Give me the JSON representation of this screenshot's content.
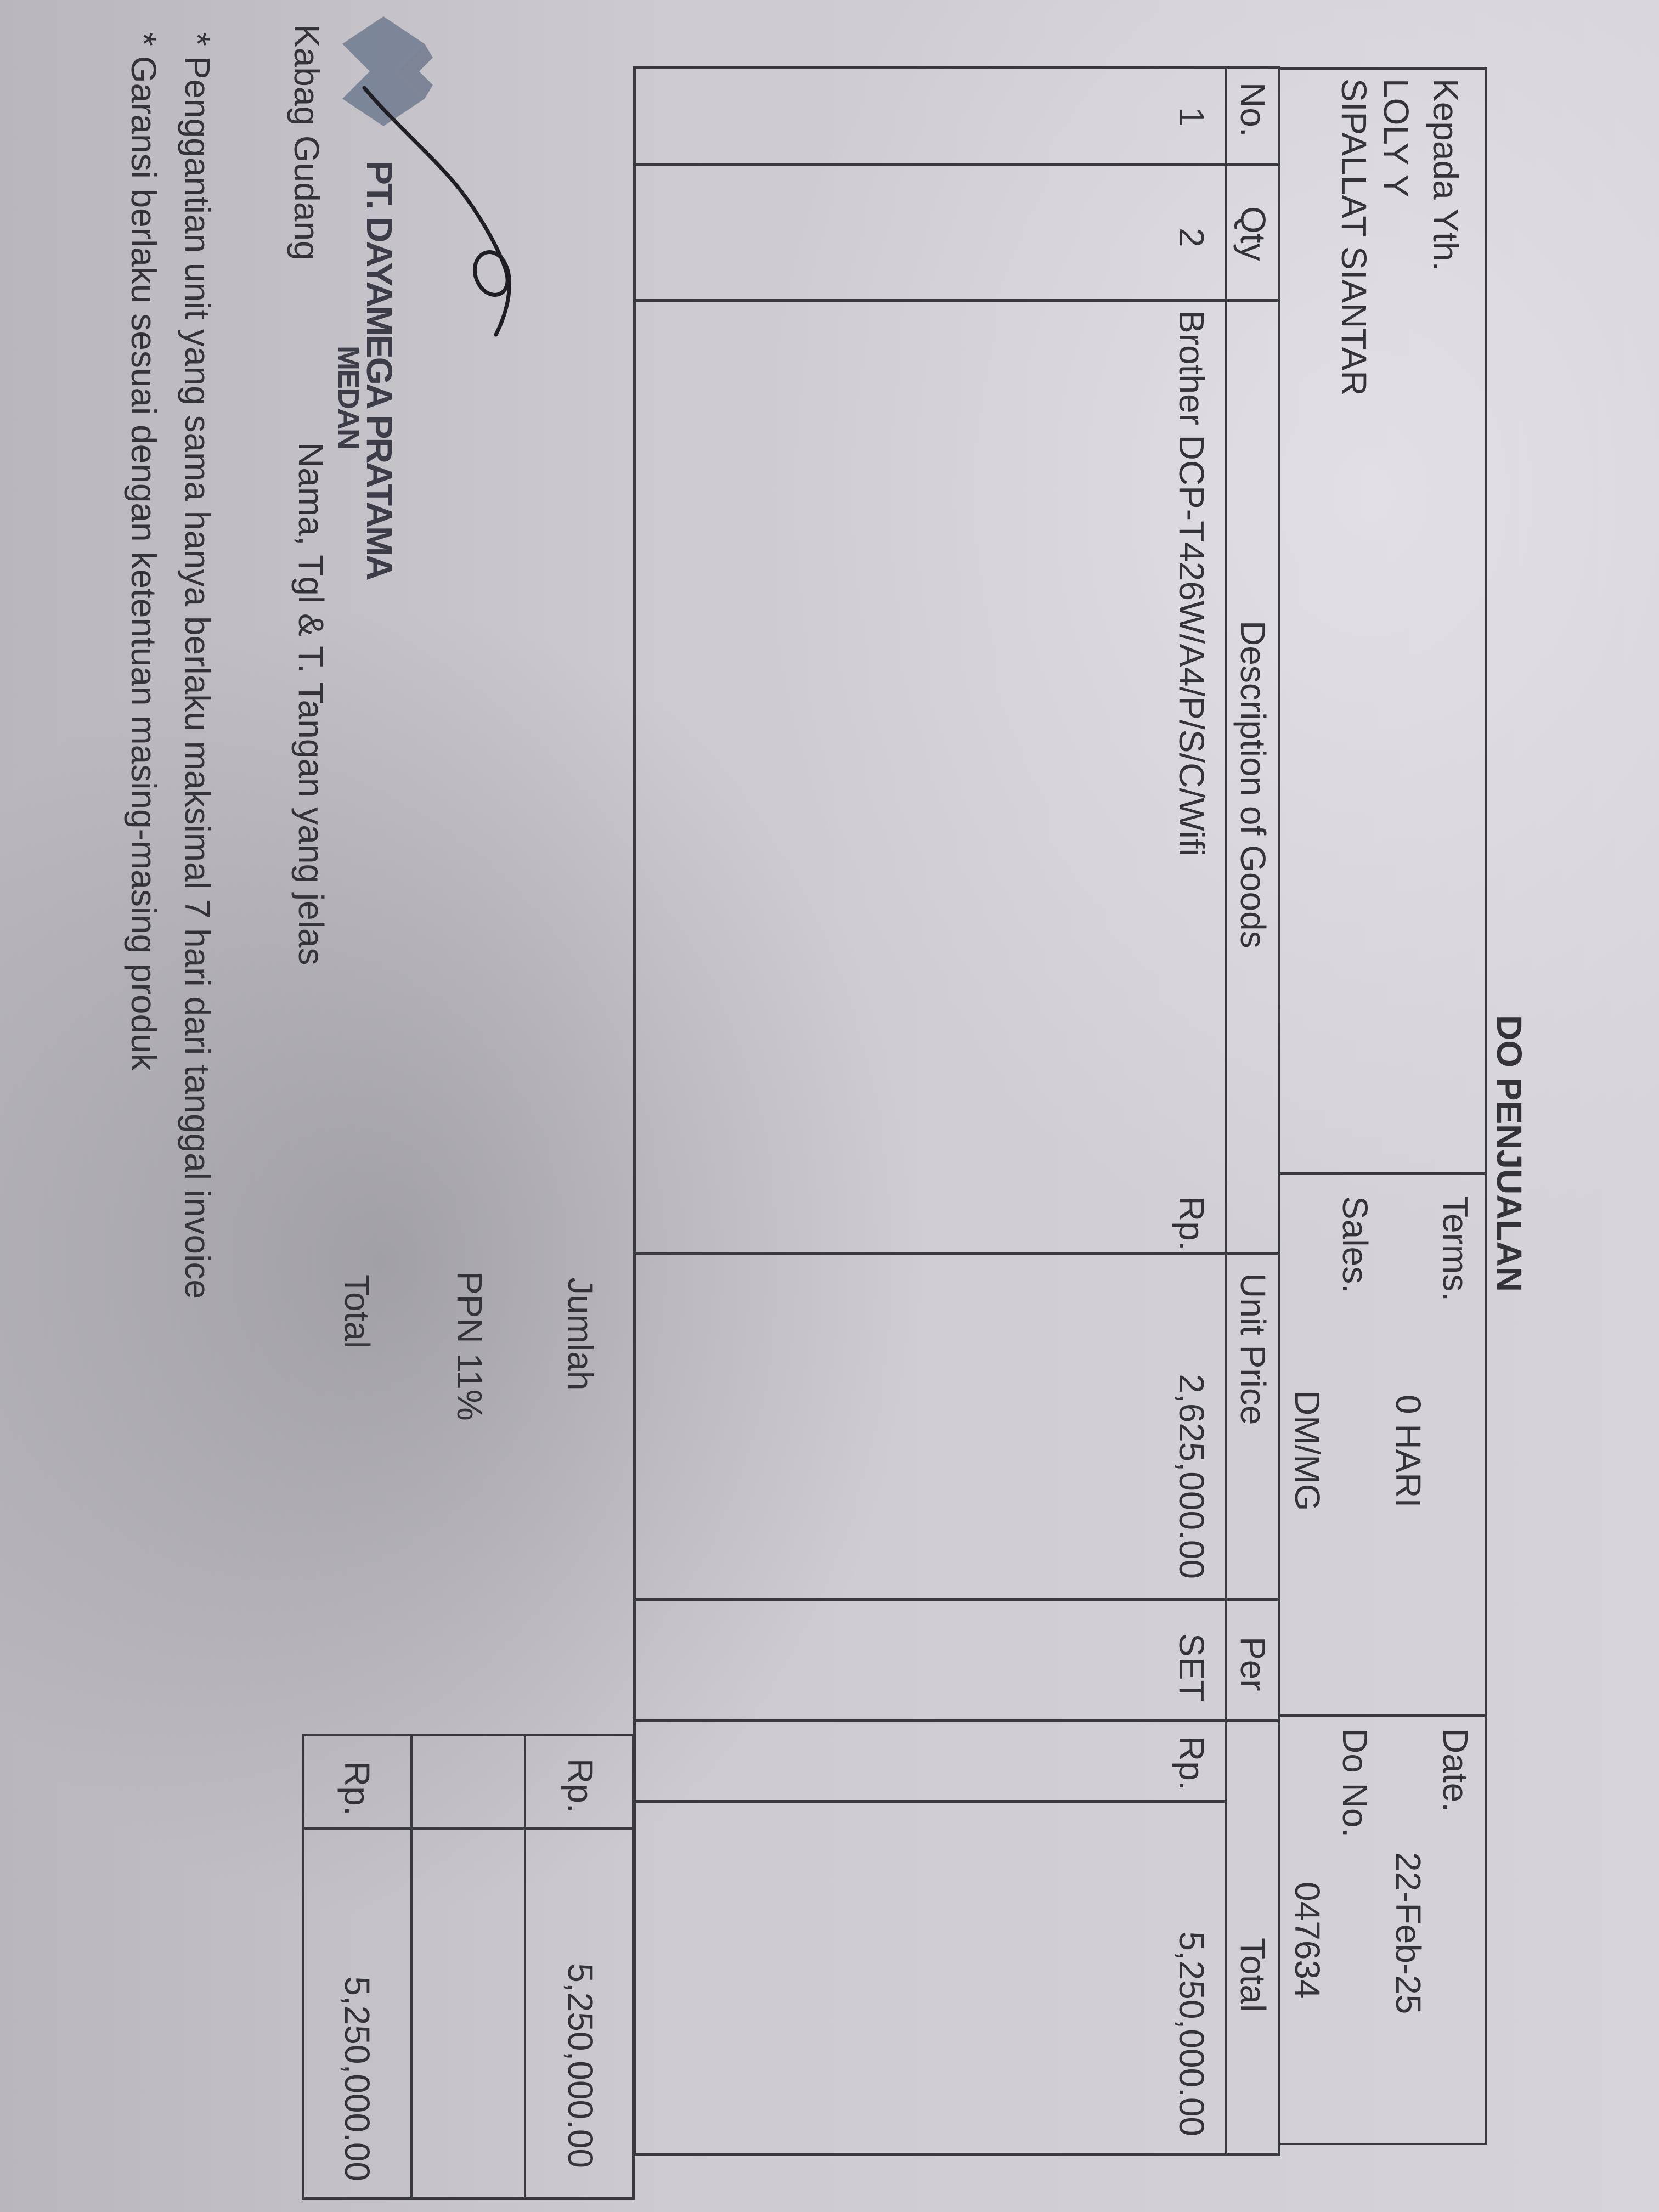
{
  "title": "DO PENJUALAN",
  "header": {
    "recipient_label": "Kepada Yth.",
    "recipient_name": "LOLY Y",
    "recipient_location": "SIPALLAT SIANTAR",
    "terms_label": "Terms.",
    "terms_value": "0 HARI",
    "sales_label": "Sales.",
    "sales_value": "DM/MG",
    "date_label": "Date.",
    "date_value": "22-Feb-25",
    "do_no_label": "Do No.",
    "do_no_value": "047634"
  },
  "table": {
    "columns": [
      "No.",
      "Qty",
      "Description of Goods",
      "Unit Price",
      "Per",
      "Total"
    ],
    "rows": [
      {
        "no": "1",
        "qty": "2",
        "description": "Brother DCP-T426W/A4/P/S/C/Wifi",
        "unit_price_currency": "Rp.",
        "unit_price": "2,625,000.00",
        "per": "SET",
        "total_currency": "Rp.",
        "total": "5,250,000.00"
      }
    ]
  },
  "summary": {
    "jumlah_label": "Jumlah",
    "jumlah_currency": "Rp.",
    "jumlah_value": "5,250,000.00",
    "ppn_label": "PPN 11%",
    "total_label": "Total",
    "total_currency": "Rp.",
    "total_value": "5,250,000.00"
  },
  "footer": {
    "company_name": "PT. DAYAMEGA PRATAMA",
    "company_city": "MEDAN",
    "signer_role": "Kabag Gudang",
    "signature_instruction": "Nama, Tgl & T. Tangan yang jelas",
    "notes": [
      "* Penggantian unit yang sama hanya berlaku maksimal 7 hari dari tanggal invoice",
      "* Garansi berlaku sesuai dengan ketentuan masing-masing produk"
    ]
  },
  "colors": {
    "ink": "#343338",
    "paper": "#d2d0d5",
    "stamp": "#6e7b8f"
  }
}
